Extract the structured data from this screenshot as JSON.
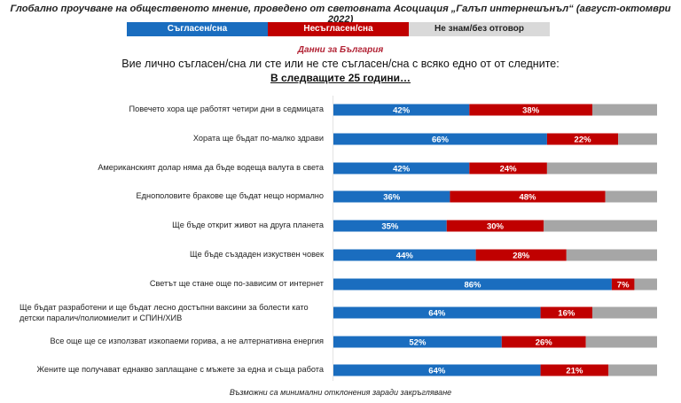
{
  "header": {
    "title": "Глобално проучване на общественото мнение, проведено от световната Асоциация „Галъп интернешънъл“ (август-октомври 2022)",
    "subtitle": "Данни за България",
    "question": "Вие лично съгласен/сна ли сте или не сте съгласен/сна с всяко едно от от следните:",
    "horizon": "В следващите 25 години…"
  },
  "footnote": "Възможни са минимални отклонения заради закръгляване",
  "colors": {
    "agree": "#1a6dbf",
    "disagree": "#c00000",
    "dont_know": "#a6a6a6",
    "legend_dont_know": "#d9d9d9"
  },
  "chart_data": {
    "type": "bar",
    "orientation": "horizontal-stacked-100",
    "title": "Глобално проучване на общественото мнение, проведено от световната Асоциация „Галъп интернешънъл“ (август-октомври 2022)",
    "subtitle": "Данни за България",
    "legend": [
      "Съгласен/сна",
      "Несъгласен/сна",
      "Не знам/без отговор"
    ],
    "legend_position": "top",
    "categories": [
      "Повечето хора ще работят четири дни в седмицата",
      "Хората ще бъдат по-малко здрави",
      "Американският долар няма да бъде водеща валута в света",
      "Еднополовите бракове ще бъдат нещо нормално",
      "Ще бъде открит живот на друга планета",
      "Ще бъде създаден изкуствен човек",
      "Светът ще стане още по-зависим от интернет",
      "Ще бъдат разработени и ще бъдат лесно достъпни ваксини за болести като детски паралич/полиомиелит и СПИН/ХИВ",
      "Все още ще се използват изкопаеми горива, а не алтернативна енергия",
      "Жените ще получават еднакво заплащане с мъжете за една и съща работа"
    ],
    "series": [
      {
        "name": "Съгласен/сна",
        "values": [
          42,
          66,
          42,
          36,
          35,
          44,
          86,
          64,
          52,
          64
        ]
      },
      {
        "name": "Несъгласен/сна",
        "values": [
          38,
          22,
          24,
          48,
          30,
          28,
          7,
          16,
          26,
          21
        ]
      },
      {
        "name": "Не знам/без отговор",
        "values": [
          20,
          12,
          34,
          16,
          35,
          28,
          7,
          20,
          22,
          15
        ]
      }
    ],
    "value_suffix": "%",
    "labeled_series": [
      "Съгласен/сна",
      "Несъгласен/сна"
    ],
    "xlim": [
      0,
      100
    ],
    "grid": false
  }
}
